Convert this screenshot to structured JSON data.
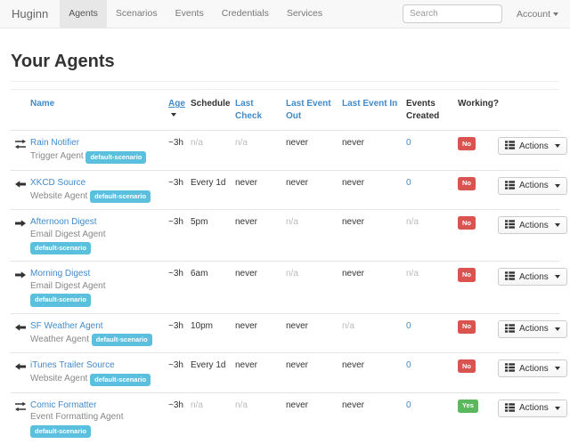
{
  "brand": "Huginn",
  "nav": {
    "items": [
      {
        "label": "Agents",
        "active": true
      },
      {
        "label": "Scenarios",
        "active": false
      },
      {
        "label": "Events",
        "active": false
      },
      {
        "label": "Credentials",
        "active": false
      },
      {
        "label": "Services",
        "active": false
      }
    ],
    "search_placeholder": "Search",
    "account_label": "Account"
  },
  "page": {
    "title": "Your Agents"
  },
  "table": {
    "headers": [
      {
        "label": "Name",
        "link": true,
        "sorted": false
      },
      {
        "label": "Age",
        "link": true,
        "sorted": true
      },
      {
        "label": "Schedule",
        "link": false,
        "sorted": false
      },
      {
        "label": "Last Check",
        "link": true,
        "sorted": false
      },
      {
        "label": "Last Event Out",
        "link": true,
        "sorted": false
      },
      {
        "label": "Last Event In",
        "link": true,
        "sorted": false
      },
      {
        "label": "Events Created",
        "link": false,
        "sorted": false
      },
      {
        "label": "Working?",
        "link": false,
        "sorted": false
      }
    ],
    "actions_label": "Actions",
    "rows": [
      {
        "icon": "transfer-icon",
        "name": "Rain Notifier",
        "type": "Trigger Agent",
        "scenario": "default-scenario",
        "age": "~3h",
        "schedule": {
          "text": "n/a",
          "muted": true
        },
        "last_check": {
          "text": "n/a",
          "muted": true
        },
        "last_event_out": {
          "text": "never",
          "muted": false
        },
        "last_event_in": {
          "text": "never",
          "muted": false
        },
        "events_created": {
          "text": "0",
          "link": true,
          "muted": false
        },
        "working": {
          "text": "No",
          "color": "danger"
        }
      },
      {
        "icon": "arrow-left-icon",
        "name": "XKCD Source",
        "type": "Website Agent",
        "scenario": "default-scenario",
        "age": "~3h",
        "schedule": {
          "text": "Every 1d",
          "muted": false
        },
        "last_check": {
          "text": "never",
          "muted": false
        },
        "last_event_out": {
          "text": "never",
          "muted": false
        },
        "last_event_in": {
          "text": "never",
          "muted": false
        },
        "events_created": {
          "text": "0",
          "link": true,
          "muted": false
        },
        "working": {
          "text": "No",
          "color": "danger"
        }
      },
      {
        "icon": "arrow-right-icon",
        "name": "Afternoon Digest",
        "type": "Email Digest Agent",
        "scenario": "default-scenario",
        "age": "~3h",
        "schedule": {
          "text": "5pm",
          "muted": false
        },
        "last_check": {
          "text": "never",
          "muted": false
        },
        "last_event_out": {
          "text": "n/a",
          "muted": true
        },
        "last_event_in": {
          "text": "never",
          "muted": false
        },
        "events_created": {
          "text": "n/a",
          "link": false,
          "muted": true
        },
        "working": {
          "text": "No",
          "color": "danger"
        }
      },
      {
        "icon": "arrow-right-icon",
        "name": "Morning Digest",
        "type": "Email Digest Agent",
        "scenario": "default-scenario",
        "age": "~3h",
        "schedule": {
          "text": "6am",
          "muted": false
        },
        "last_check": {
          "text": "never",
          "muted": false
        },
        "last_event_out": {
          "text": "n/a",
          "muted": true
        },
        "last_event_in": {
          "text": "never",
          "muted": false
        },
        "events_created": {
          "text": "n/a",
          "link": false,
          "muted": true
        },
        "working": {
          "text": "No",
          "color": "danger"
        }
      },
      {
        "icon": "arrow-left-icon",
        "name": "SF Weather Agent",
        "type": "Weather Agent",
        "scenario": "default-scenario",
        "age": "~3h",
        "schedule": {
          "text": "10pm",
          "muted": false
        },
        "last_check": {
          "text": "never",
          "muted": false
        },
        "last_event_out": {
          "text": "never",
          "muted": false
        },
        "last_event_in": {
          "text": "n/a",
          "muted": true
        },
        "events_created": {
          "text": "0",
          "link": true,
          "muted": false
        },
        "working": {
          "text": "No",
          "color": "danger"
        }
      },
      {
        "icon": "arrow-left-icon",
        "name": "iTunes Trailer Source",
        "type": "Website Agent",
        "scenario": "default-scenario",
        "age": "~3h",
        "schedule": {
          "text": "Every 1d",
          "muted": false
        },
        "last_check": {
          "text": "never",
          "muted": false
        },
        "last_event_out": {
          "text": "never",
          "muted": false
        },
        "last_event_in": {
          "text": "never",
          "muted": false
        },
        "events_created": {
          "text": "0",
          "link": true,
          "muted": false
        },
        "working": {
          "text": "No",
          "color": "danger"
        }
      },
      {
        "icon": "transfer-icon",
        "name": "Comic Formatter",
        "type": "Event Formatting Agent",
        "scenario": "default-scenario",
        "age": "~3h",
        "schedule": {
          "text": "n/a",
          "muted": true
        },
        "last_check": {
          "text": "n/a",
          "muted": true
        },
        "last_event_out": {
          "text": "never",
          "muted": false
        },
        "last_event_in": {
          "text": "never",
          "muted": false
        },
        "events_created": {
          "text": "0",
          "link": true,
          "muted": false
        },
        "working": {
          "text": "Yes",
          "color": "success"
        }
      }
    ]
  },
  "colors": {
    "link": "#428bca",
    "badge_info": "#5bc0de",
    "label_danger": "#d9534f",
    "label_success": "#5cb85c",
    "navbar_bg": "#f8f8f8",
    "nav_active_bg": "#e7e7e7"
  }
}
